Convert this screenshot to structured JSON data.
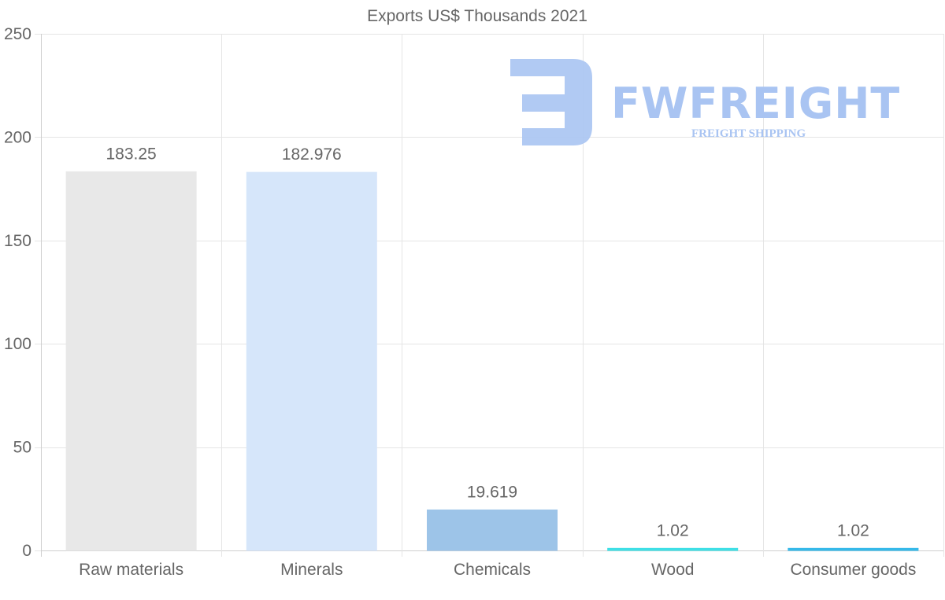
{
  "watermark": {
    "brand": "FWFREIGHT",
    "tagline": "FREIGHT SHIPPING",
    "color": "#a9c4f2"
  },
  "chart_data": {
    "type": "bar",
    "title": "Exports US$ Thousands 2021",
    "xlabel": "",
    "ylabel": "",
    "categories": [
      "Raw materials",
      "Minerals",
      "Chemicals",
      "Wood",
      "Consumer goods"
    ],
    "values": [
      183.25,
      182.976,
      19.619,
      1.02,
      1.02
    ],
    "value_labels": [
      "183.25",
      "182.976",
      "19.619",
      "1.02",
      "1.02"
    ],
    "colors": [
      "#e8e8e8",
      "#d6e6fa",
      "#9dc4e8",
      "#3fdfe6",
      "#36b9e9"
    ],
    "ylim": [
      0,
      250
    ],
    "yticks": [
      0,
      50,
      100,
      150,
      200,
      250
    ],
    "grid": true,
    "legend": "none"
  }
}
